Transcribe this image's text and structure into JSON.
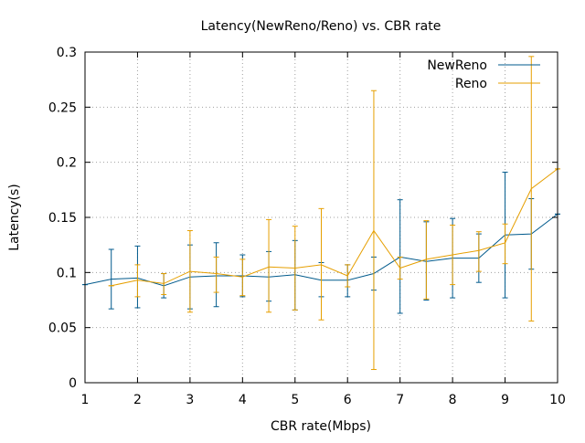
{
  "chart_data": {
    "type": "line",
    "title": "Latency(NewReno/Reno) vs. CBR rate",
    "xlabel": "CBR rate(Mbps)",
    "ylabel": "Latency(s)",
    "xlim": [
      1,
      10
    ],
    "ylim": [
      0,
      0.3
    ],
    "x_ticks": [
      {
        "value": 1,
        "label": "1"
      },
      {
        "value": 2,
        "label": "2"
      },
      {
        "value": 3,
        "label": "3"
      },
      {
        "value": 4,
        "label": "4"
      },
      {
        "value": 5,
        "label": "5"
      },
      {
        "value": 6,
        "label": "6"
      },
      {
        "value": 7,
        "label": "7"
      },
      {
        "value": 8,
        "label": "8"
      },
      {
        "value": 9,
        "label": "9"
      },
      {
        "value": 10,
        "label": "10"
      }
    ],
    "y_ticks": [
      {
        "value": 0,
        "label": "0"
      },
      {
        "value": 0.05,
        "label": "0.05"
      },
      {
        "value": 0.1,
        "label": "0.1"
      },
      {
        "value": 0.15,
        "label": "0.15"
      },
      {
        "value": 0.2,
        "label": "0.2"
      },
      {
        "value": 0.25,
        "label": "0.25"
      },
      {
        "value": 0.3,
        "label": "0.3"
      }
    ],
    "grid": true,
    "legend_position": "top-right",
    "series": [
      {
        "name": "NewReno",
        "color": "#005a8c",
        "x": [
          1,
          1.5,
          2,
          2.5,
          3,
          3.5,
          4,
          4.5,
          5,
          5.5,
          6,
          6.5,
          7,
          7.5,
          8,
          8.5,
          9,
          9.5,
          10
        ],
        "y": [
          0.089,
          0.094,
          0.095,
          0.088,
          0.096,
          0.097,
          0.097,
          0.096,
          0.098,
          0.093,
          0.093,
          0.099,
          0.114,
          0.11,
          0.113,
          0.113,
          0.134,
          0.135,
          0.153
        ],
        "low": [
          0.089,
          0.067,
          0.068,
          0.077,
          0.067,
          0.069,
          0.078,
          0.074,
          0.066,
          0.078,
          0.078,
          0.084,
          0.063,
          0.075,
          0.077,
          0.091,
          0.077,
          0.103,
          0.153
        ],
        "high": [
          0.089,
          0.121,
          0.124,
          0.099,
          0.125,
          0.127,
          0.116,
          0.119,
          0.129,
          0.109,
          0.107,
          0.114,
          0.166,
          0.146,
          0.149,
          0.135,
          0.191,
          0.167,
          0.153
        ]
      },
      {
        "name": "Reno",
        "color": "#e69f00",
        "x": [
          1.5,
          2,
          2.5,
          3,
          3.5,
          4,
          4.5,
          5,
          5.5,
          6,
          6.5,
          7,
          7.5,
          8,
          8.5,
          9,
          9.5,
          10
        ],
        "y": [
          0.088,
          0.093,
          0.09,
          0.101,
          0.099,
          0.096,
          0.105,
          0.104,
          0.107,
          0.097,
          0.138,
          0.104,
          0.112,
          0.116,
          0.12,
          0.127,
          0.176,
          0.194
        ],
        "low": [
          0.088,
          0.078,
          0.08,
          0.064,
          0.082,
          0.079,
          0.064,
          0.066,
          0.057,
          0.087,
          0.012,
          0.094,
          0.076,
          0.089,
          0.101,
          0.108,
          0.056,
          0.194
        ],
        "high": [
          0.088,
          0.107,
          0.099,
          0.138,
          0.114,
          0.112,
          0.148,
          0.142,
          0.158,
          0.107,
          0.265,
          0.114,
          0.147,
          0.143,
          0.137,
          0.144,
          0.296,
          0.194
        ]
      }
    ]
  }
}
